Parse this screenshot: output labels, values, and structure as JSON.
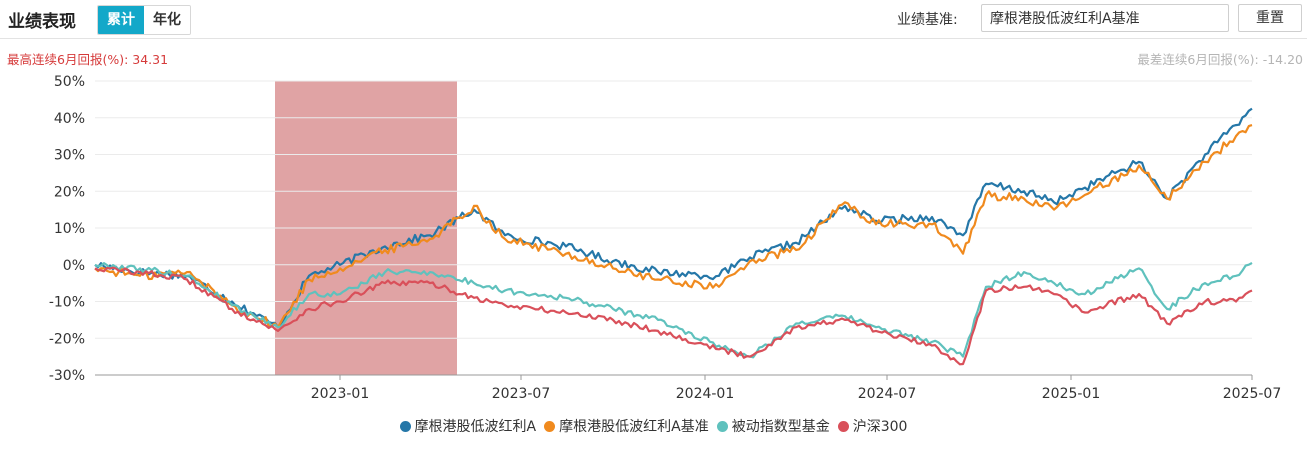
{
  "header": {
    "title": "业绩表现",
    "tabs": [
      {
        "label": "累计",
        "active": true
      },
      {
        "label": "年化",
        "active": false
      }
    ],
    "benchmark_label": "业绩基准:",
    "benchmark_value": "摩根港股低波红利A基准",
    "reset_label": "重置"
  },
  "stats": {
    "best_label": "最高连续6月回报(%):",
    "best_value": "34.31",
    "worst_label": "最差连续6月回报(%):",
    "worst_value": "-14.20"
  },
  "colors": {
    "fund": "#2577a8",
    "benchmark": "#f08a1e",
    "passive": "#5fc1bd",
    "hs300": "#d9505a",
    "highlight": "#d58486",
    "accent": "#13a8c9"
  },
  "chart_data": {
    "type": "line",
    "x_range": [
      "2022-05-01",
      "2025-07-01"
    ],
    "x_ticks": [
      "2023-01",
      "2023-07",
      "2024-01",
      "2024-07",
      "2025-01",
      "2025-07"
    ],
    "ylim": [
      -30,
      50
    ],
    "y_ticks": [
      "50%",
      "40%",
      "30%",
      "20%",
      "10%",
      "0%",
      "-10%",
      "-20%",
      "-30%"
    ],
    "grid": true,
    "legend_position": "bottom",
    "highlight_period": [
      "2022-10-28",
      "2023-04-28"
    ],
    "series": [
      {
        "name": "摩根港股低波红利A",
        "color_key": "fund",
        "points": [
          [
            "2022-05-01",
            0
          ],
          [
            "2022-06-15",
            -2
          ],
          [
            "2022-08-01",
            -3
          ],
          [
            "2022-09-15",
            -10
          ],
          [
            "2022-10-31",
            -17
          ],
          [
            "2022-12-01",
            -3
          ],
          [
            "2023-01-01",
            0
          ],
          [
            "2023-02-15",
            5
          ],
          [
            "2023-04-01",
            8
          ],
          [
            "2023-05-15",
            15
          ],
          [
            "2023-06-15",
            8
          ],
          [
            "2023-08-15",
            5
          ],
          [
            "2023-10-01",
            1
          ],
          [
            "2023-11-15",
            -2
          ],
          [
            "2024-01-15",
            -3
          ],
          [
            "2024-02-15",
            2
          ],
          [
            "2024-04-01",
            6
          ],
          [
            "2024-05-20",
            16
          ],
          [
            "2024-06-20",
            12
          ],
          [
            "2024-08-15",
            13
          ],
          [
            "2024-09-15",
            8
          ],
          [
            "2024-10-08",
            22
          ],
          [
            "2024-11-15",
            20
          ],
          [
            "2024-12-15",
            17
          ],
          [
            "2025-01-15",
            21
          ],
          [
            "2025-03-10",
            28
          ],
          [
            "2025-04-07",
            18
          ],
          [
            "2025-05-15",
            30
          ],
          [
            "2025-06-15",
            38
          ],
          [
            "2025-07-01",
            42.5
          ]
        ]
      },
      {
        "name": "摩根港股低波红利A基准",
        "color_key": "benchmark",
        "points": [
          [
            "2022-05-01",
            -1
          ],
          [
            "2022-06-15",
            -3
          ],
          [
            "2022-08-01",
            -2
          ],
          [
            "2022-09-15",
            -11
          ],
          [
            "2022-10-31",
            -17
          ],
          [
            "2022-12-01",
            -4
          ],
          [
            "2023-01-01",
            -1
          ],
          [
            "2023-02-15",
            4
          ],
          [
            "2023-04-01",
            7
          ],
          [
            "2023-05-15",
            16
          ],
          [
            "2023-06-15",
            7
          ],
          [
            "2023-08-15",
            3
          ],
          [
            "2023-10-01",
            -1
          ],
          [
            "2023-11-15",
            -4
          ],
          [
            "2024-01-15",
            -6
          ],
          [
            "2024-02-15",
            1
          ],
          [
            "2024-04-01",
            4
          ],
          [
            "2024-05-20",
            17
          ],
          [
            "2024-06-20",
            11
          ],
          [
            "2024-08-15",
            11
          ],
          [
            "2024-09-15",
            3
          ],
          [
            "2024-10-08",
            19
          ],
          [
            "2024-11-15",
            18
          ],
          [
            "2024-12-15",
            15
          ],
          [
            "2025-01-15",
            19
          ],
          [
            "2025-03-10",
            27
          ],
          [
            "2025-04-07",
            18
          ],
          [
            "2025-05-15",
            28
          ],
          [
            "2025-06-15",
            35
          ],
          [
            "2025-07-01",
            38
          ]
        ]
      },
      {
        "name": "被动指数型基金",
        "color_key": "passive",
        "points": [
          [
            "2022-05-01",
            0
          ],
          [
            "2022-06-15",
            -1
          ],
          [
            "2022-08-01",
            -3
          ],
          [
            "2022-09-15",
            -11
          ],
          [
            "2022-10-31",
            -17
          ],
          [
            "2022-12-01",
            -8
          ],
          [
            "2023-01-01",
            -8
          ],
          [
            "2023-02-15",
            -2
          ],
          [
            "2023-04-01",
            -2
          ],
          [
            "2023-05-15",
            -5
          ],
          [
            "2023-06-15",
            -7
          ],
          [
            "2023-08-15",
            -9
          ],
          [
            "2023-10-01",
            -12
          ],
          [
            "2023-11-15",
            -15
          ],
          [
            "2024-01-15",
            -22
          ],
          [
            "2024-02-15",
            -25
          ],
          [
            "2024-04-01",
            -16
          ],
          [
            "2024-05-20",
            -14
          ],
          [
            "2024-06-20",
            -17
          ],
          [
            "2024-08-15",
            -21
          ],
          [
            "2024-09-15",
            -25
          ],
          [
            "2024-10-08",
            -6
          ],
          [
            "2024-11-15",
            -2
          ],
          [
            "2024-12-15",
            -5
          ],
          [
            "2025-01-15",
            -8
          ],
          [
            "2025-03-10",
            -1
          ],
          [
            "2025-04-07",
            -12
          ],
          [
            "2025-05-15",
            -5
          ],
          [
            "2025-06-15",
            -3
          ],
          [
            "2025-07-01",
            0.5
          ]
        ]
      },
      {
        "name": "沪深300",
        "color_key": "hs300",
        "points": [
          [
            "2022-05-01",
            -1
          ],
          [
            "2022-06-15",
            -2
          ],
          [
            "2022-08-01",
            -4
          ],
          [
            "2022-09-15",
            -12
          ],
          [
            "2022-10-31",
            -18
          ],
          [
            "2022-12-01",
            -12
          ],
          [
            "2023-01-01",
            -10
          ],
          [
            "2023-02-15",
            -5
          ],
          [
            "2023-04-01",
            -5
          ],
          [
            "2023-05-15",
            -9
          ],
          [
            "2023-06-15",
            -11
          ],
          [
            "2023-08-15",
            -13
          ],
          [
            "2023-10-01",
            -15
          ],
          [
            "2023-11-15",
            -18
          ],
          [
            "2024-01-15",
            -23
          ],
          [
            "2024-02-15",
            -25
          ],
          [
            "2024-04-01",
            -17
          ],
          [
            "2024-05-20",
            -15
          ],
          [
            "2024-06-20",
            -18
          ],
          [
            "2024-08-15",
            -22
          ],
          [
            "2024-09-15",
            -27
          ],
          [
            "2024-10-08",
            -7
          ],
          [
            "2024-11-15",
            -6
          ],
          [
            "2024-12-15",
            -8
          ],
          [
            "2025-01-15",
            -13
          ],
          [
            "2025-03-10",
            -8
          ],
          [
            "2025-04-07",
            -16
          ],
          [
            "2025-05-15",
            -10
          ],
          [
            "2025-06-15",
            -10
          ],
          [
            "2025-07-01",
            -7
          ]
        ]
      }
    ]
  }
}
